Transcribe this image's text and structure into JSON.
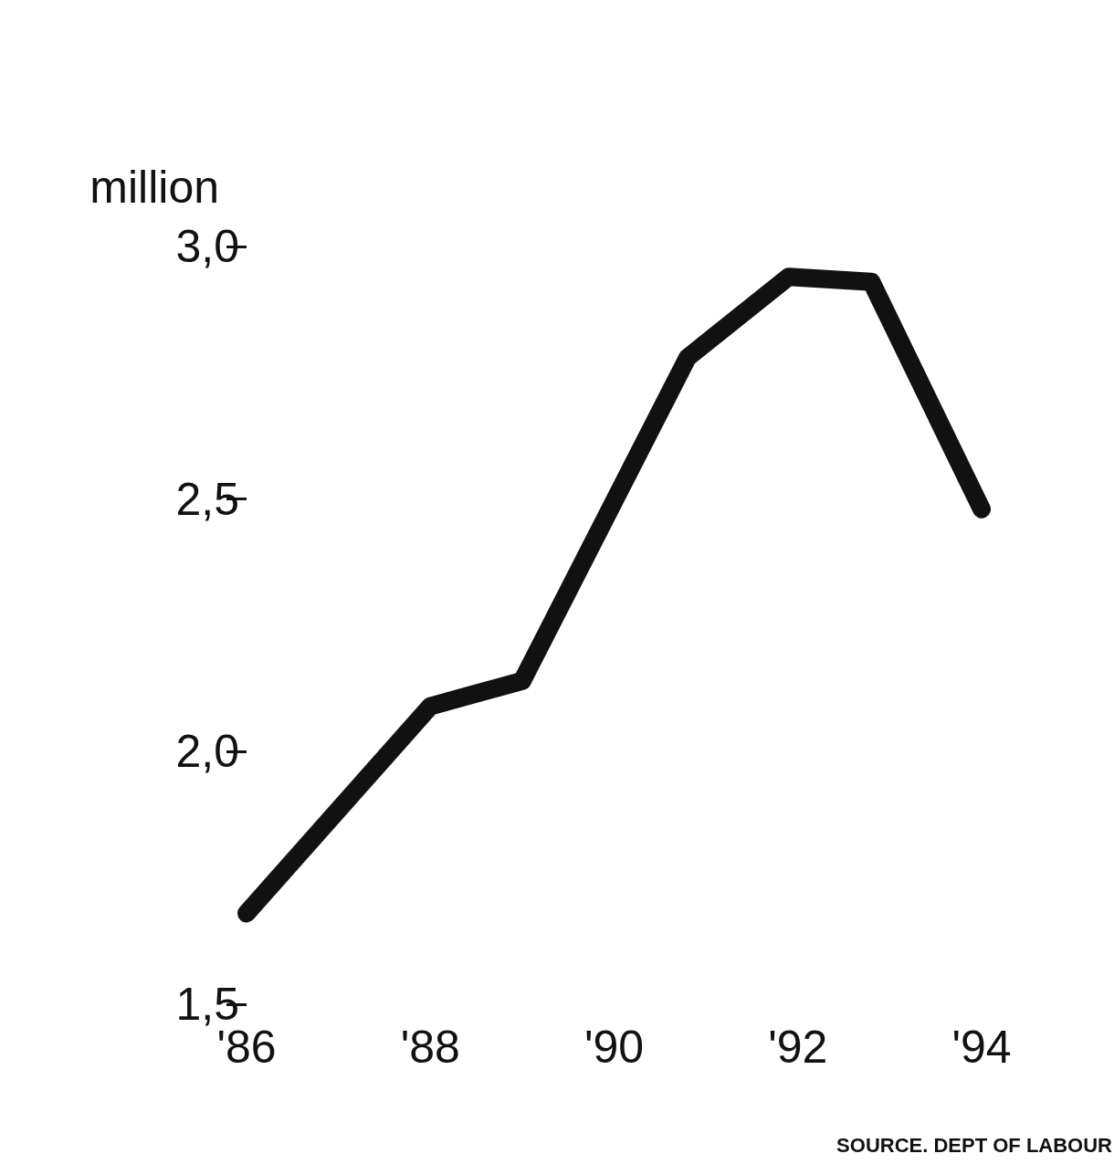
{
  "chart_data": {
    "type": "line",
    "ylabel": "million",
    "annotations": [
      "SOURCE. DEPT OF LABOUR"
    ],
    "x": [
      1986,
      1988,
      1989,
      1990.8,
      1991.9,
      1992.8,
      1994
    ],
    "series": [
      {
        "color": "#111111",
        "values": [
          1.68,
          2.09,
          2.14,
          2.78,
          2.94,
          2.93,
          2.48
        ]
      }
    ],
    "xlim": [
      1986,
      1994
    ],
    "xticks": [
      {
        "value": 1986,
        "label": "'86"
      },
      {
        "value": 1988,
        "label": "'88"
      },
      {
        "value": 1990,
        "label": "'90"
      },
      {
        "value": 1992,
        "label": "'92"
      },
      {
        "value": 1994,
        "label": "'94"
      }
    ],
    "ylim": [
      1.5,
      3.0
    ],
    "yticks": [
      {
        "value": 1.5,
        "label": "1,5"
      },
      {
        "value": 2,
        "label": "2,0"
      },
      {
        "value": 2.5,
        "label": "2,5"
      },
      {
        "value": 3,
        "label": "3,0"
      }
    ],
    "grid": false,
    "line_style": "solid"
  }
}
